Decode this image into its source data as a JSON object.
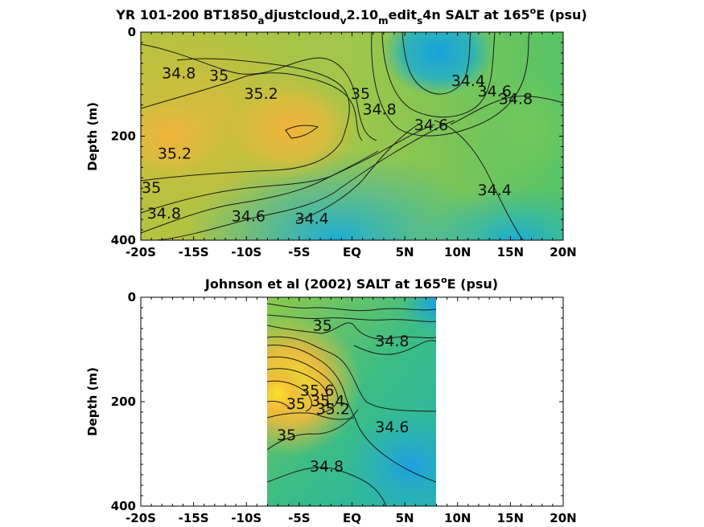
{
  "chart_data": [
    {
      "type": "heatmap",
      "title": "YR 101-200 BT1850_adjustcloud_v2.10_medit_s4n SALT at 165°E (psu)",
      "title_parts": {
        "pre": "YR 101-200 BT1850",
        "sub1": "a",
        "mid1": "djustcloud",
        "sub2": "v",
        "mid2": "2.10",
        "sub3": "m",
        "mid3": "edit",
        "sub4": "s",
        "mid4": "4n SALT at 165",
        "sup": "o",
        "post": "E (psu)"
      },
      "ylabel": "Depth (m)",
      "xlim": [
        -20,
        20
      ],
      "ylim": [
        0,
        400
      ],
      "y_reversed": true,
      "xticks": [
        -20,
        -15,
        -10,
        -5,
        0,
        5,
        10,
        15,
        20
      ],
      "xticklabels": [
        "-20S",
        "-15S",
        "-10S",
        "-5S",
        "EQ",
        "5N",
        "10N",
        "15N",
        "20N"
      ],
      "yticks": [
        0,
        200,
        400
      ],
      "yticklabels": [
        "0",
        "200",
        "400"
      ],
      "data_lon_range": [
        -20,
        20
      ],
      "contour_labels": [
        {
          "text": "34.8",
          "lon": -16.4,
          "depth": 80
        },
        {
          "text": "35",
          "lon": -12.6,
          "depth": 85
        },
        {
          "text": "35.2",
          "lon": -8.6,
          "depth": 120
        },
        {
          "text": "35",
          "lon": 0.8,
          "depth": 120
        },
        {
          "text": "34.8",
          "lon": 2.6,
          "depth": 150
        },
        {
          "text": "34.4",
          "lon": 11.0,
          "depth": 95
        },
        {
          "text": "34.6",
          "lon": 13.5,
          "depth": 115
        },
        {
          "text": "34.8",
          "lon": 15.5,
          "depth": 130
        },
        {
          "text": "34.6",
          "lon": 7.5,
          "depth": 180
        },
        {
          "text": "35.2",
          "lon": -16.8,
          "depth": 235
        },
        {
          "text": "35",
          "lon": -19.0,
          "depth": 300
        },
        {
          "text": "34.8",
          "lon": -17.8,
          "depth": 350
        },
        {
          "text": "34.6",
          "lon": -9.8,
          "depth": 355
        },
        {
          "text": "34.4",
          "lon": -3.8,
          "depth": 360
        },
        {
          "text": "34.4",
          "lon": 13.5,
          "depth": 305
        }
      ]
    },
    {
      "type": "heatmap",
      "title": "Johnson et al (2002) SALT at 165°E (psu)",
      "title_parts": {
        "pre": "Johnson et al (2002) SALT at 165",
        "sup": "o",
        "post": "E (psu)"
      },
      "ylabel": "Depth (m)",
      "xlim": [
        -20,
        20
      ],
      "ylim": [
        0,
        400
      ],
      "y_reversed": true,
      "xticks": [
        -20,
        -15,
        -10,
        -5,
        0,
        5,
        10,
        15,
        20
      ],
      "xticklabels": [
        "-20S",
        "-15S",
        "-10S",
        "-5S",
        "EQ",
        "5N",
        "10N",
        "15N",
        "20N"
      ],
      "yticks": [
        0,
        200,
        400
      ],
      "yticklabels": [
        "0",
        "200",
        "400"
      ],
      "data_lon_range": [
        -8,
        8
      ],
      "contour_labels": [
        {
          "text": "35",
          "lon": -2.8,
          "depth": 55
        },
        {
          "text": "34.8",
          "lon": 3.8,
          "depth": 85
        },
        {
          "text": "35.6",
          "lon": -3.3,
          "depth": 180
        },
        {
          "text": "35.4",
          "lon": -2.3,
          "depth": 200
        },
        {
          "text": "35",
          "lon": -5.3,
          "depth": 205
        },
        {
          "text": "35.2",
          "lon": -1.8,
          "depth": 215
        },
        {
          "text": "34.6",
          "lon": 3.8,
          "depth": 250
        },
        {
          "text": "35",
          "lon": -6.2,
          "depth": 265
        },
        {
          "text": "34.8",
          "lon": -2.4,
          "depth": 325
        }
      ]
    }
  ]
}
